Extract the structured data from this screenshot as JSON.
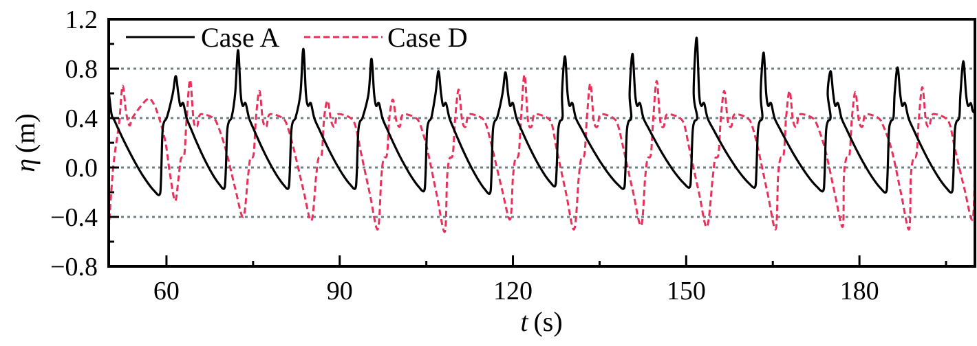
{
  "chart_data": {
    "type": "line",
    "title": "",
    "xlabel": {
      "symbol": "t",
      "unit": "(s)"
    },
    "ylabel": {
      "symbol": "η",
      "unit": "(m)"
    },
    "xlim": [
      50,
      200
    ],
    "ylim": [
      -0.8,
      1.2
    ],
    "xticks": [
      60,
      90,
      120,
      150,
      180
    ],
    "xtick_labels": [
      "60",
      "90",
      "120",
      "150",
      "180"
    ],
    "xminor": [
      75,
      105,
      135,
      165,
      195
    ],
    "yticks": [
      -0.8,
      -0.4,
      0.0,
      0.4,
      0.8,
      1.2
    ],
    "ytick_labels": [
      "−0.8",
      "−0.4",
      "0.0",
      "0.4",
      "0.8",
      "1.2"
    ],
    "yminor": [
      -0.6,
      -0.2,
      0.2,
      0.6,
      1.0
    ],
    "gridlines_y": [
      -0.4,
      0.0,
      0.4,
      0.8
    ],
    "grid": "horizontal dotted",
    "legend": {
      "placement": "top-left",
      "entries": [
        "Case A",
        "Case D"
      ]
    },
    "series": [
      {
        "name": "Case A",
        "color": "#000000",
        "style": "solid",
        "start_points": [
          [
            50.0,
            0.62
          ],
          [
            50.5,
            0.43
          ],
          [
            51.0,
            0.38
          ]
        ],
        "troughs": [
          [
            58.8,
            -0.22
          ],
          [
            70.0,
            -0.17
          ],
          [
            81.1,
            -0.17
          ],
          [
            92.7,
            -0.17
          ],
          [
            104.6,
            -0.19
          ],
          [
            116.0,
            -0.21
          ],
          [
            127.3,
            -0.15
          ],
          [
            139.2,
            -0.17
          ],
          [
            150.6,
            -0.16
          ],
          [
            161.9,
            -0.16
          ],
          [
            173.7,
            -0.19
          ],
          [
            184.6,
            -0.2
          ],
          [
            196.0,
            -0.2
          ]
        ],
        "peaks": [
          [
            61.6,
            0.74
          ],
          [
            72.4,
            0.95
          ],
          [
            83.7,
            0.96
          ],
          [
            95.5,
            0.88
          ],
          [
            107.1,
            0.78
          ],
          [
            118.7,
            0.77
          ],
          [
            129.0,
            0.9
          ],
          [
            140.7,
            0.92
          ],
          [
            151.8,
            1.05
          ],
          [
            163.4,
            0.93
          ],
          [
            175.0,
            0.78
          ],
          [
            186.6,
            0.81
          ],
          [
            198.0,
            0.86
          ]
        ],
        "end_value": 0.44
      },
      {
        "name": "Case D",
        "color": "#e8305a",
        "style": "dashed",
        "start_points": [
          [
            50.0,
            -0.5
          ],
          [
            50.8,
            0.01
          ],
          [
            51.8,
            0.36
          ],
          [
            52.4,
            0.66
          ],
          [
            53.0,
            0.45
          ],
          [
            53.6,
            0.34
          ],
          [
            54.2,
            0.41
          ],
          [
            56.6,
            0.55
          ],
          [
            57.6,
            0.53
          ],
          [
            58.6,
            0.42
          ],
          [
            59.8,
            0.21
          ],
          [
            60.6,
            -0.05
          ]
        ],
        "troughs": [
          [
            61.5,
            -0.27
          ],
          [
            73.3,
            -0.4
          ],
          [
            85.1,
            -0.43
          ],
          [
            96.6,
            -0.5
          ],
          [
            108.2,
            -0.52
          ],
          [
            119.5,
            -0.42
          ],
          [
            130.6,
            -0.5
          ],
          [
            142.2,
            -0.47
          ],
          [
            153.6,
            -0.48
          ],
          [
            165.5,
            -0.5
          ],
          [
            177.1,
            -0.48
          ],
          [
            188.6,
            -0.5
          ],
          [
            199.6,
            -0.42
          ]
        ],
        "peaks": [
          [
            64.1,
            0.71
          ],
          [
            76.1,
            0.62
          ],
          [
            87.9,
            0.54
          ],
          [
            99.2,
            0.55
          ],
          [
            110.6,
            0.63
          ],
          [
            122.0,
            0.75
          ],
          [
            133.4,
            0.68
          ],
          [
            144.9,
            0.7
          ],
          [
            156.6,
            0.62
          ],
          [
            167.9,
            0.62
          ],
          [
            179.3,
            0.61
          ],
          [
            190.9,
            0.65
          ]
        ],
        "end_value": 0.02
      }
    ]
  }
}
